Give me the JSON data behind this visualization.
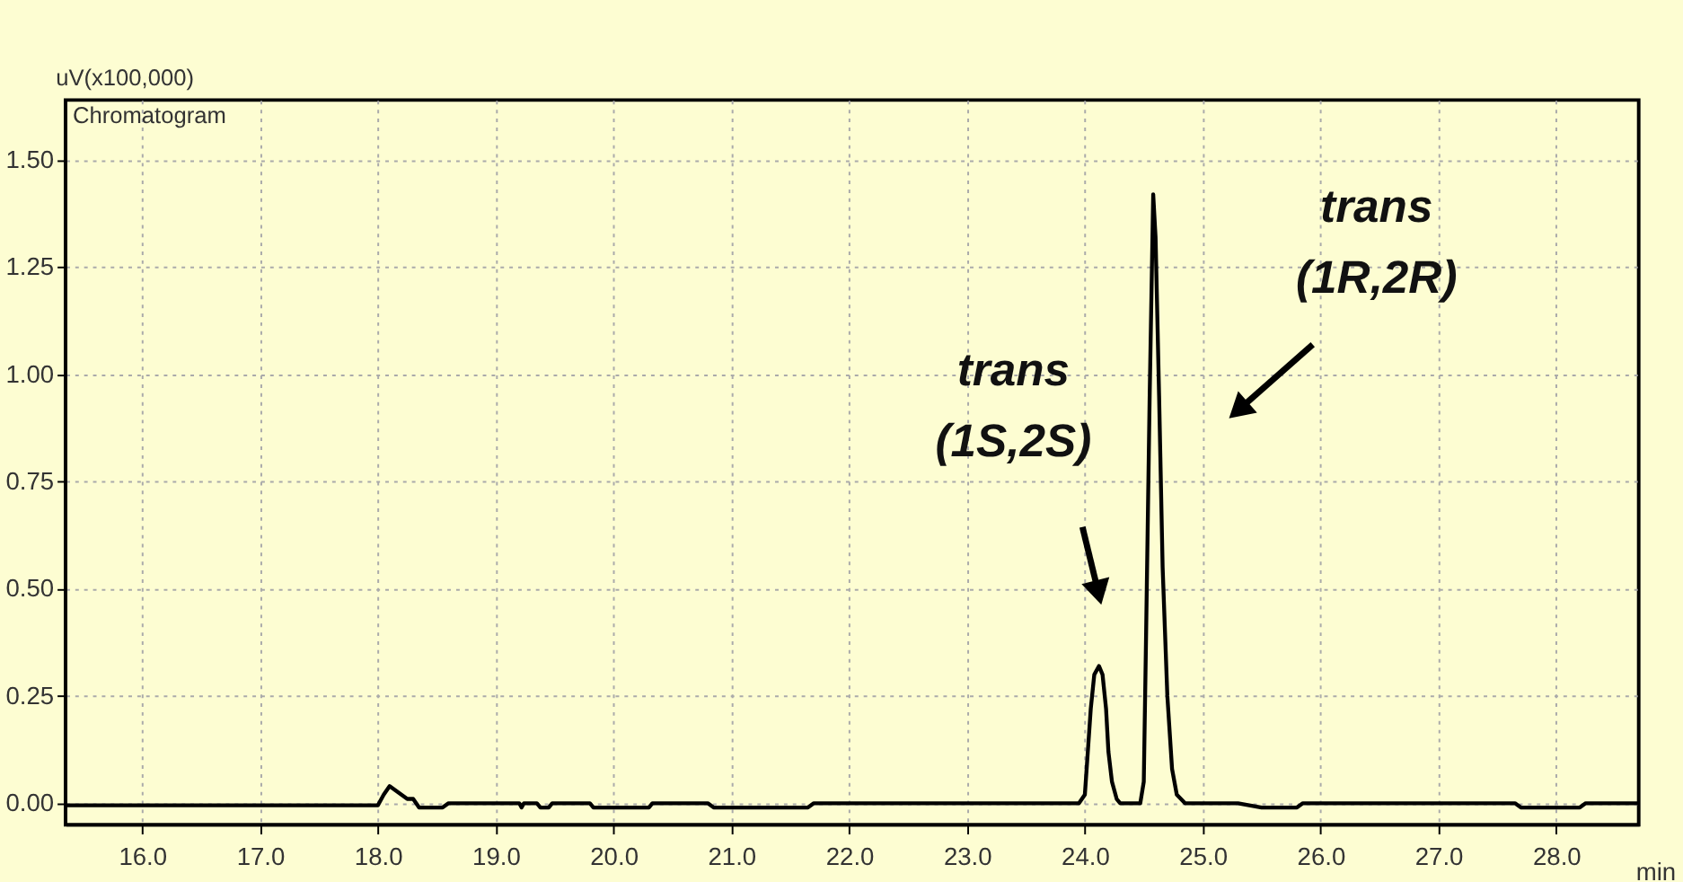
{
  "chart_data": {
    "type": "line",
    "title": "Chromatogram",
    "xlabel": "min",
    "ylabel": "uV(x100,000)",
    "xlim": [
      15.35,
      28.7
    ],
    "ylim": [
      -0.05,
      1.64
    ],
    "xticks": [
      {
        "value": 16,
        "label": "16.0"
      },
      {
        "value": 17,
        "label": "17.0"
      },
      {
        "value": 18,
        "label": "18.0"
      },
      {
        "value": 19,
        "label": "19.0"
      },
      {
        "value": 20,
        "label": "20.0"
      },
      {
        "value": 21,
        "label": "21.0"
      },
      {
        "value": 22,
        "label": "22.0"
      },
      {
        "value": 23,
        "label": "23.0"
      },
      {
        "value": 24,
        "label": "24.0"
      },
      {
        "value": 25,
        "label": "25.0"
      },
      {
        "value": 26,
        "label": "26.0"
      },
      {
        "value": 27,
        "label": "27.0"
      },
      {
        "value": 28,
        "label": "28.0"
      }
    ],
    "yticks": [
      {
        "value": 0,
        "label": "0.00"
      },
      {
        "value": 0.25,
        "label": "0.25"
      },
      {
        "value": 0.5,
        "label": "0.50"
      },
      {
        "value": 0.75,
        "label": "0.75"
      },
      {
        "value": 1.0,
        "label": "1.00"
      },
      {
        "value": 1.25,
        "label": "1.25"
      },
      {
        "value": 1.5,
        "label": "1.50"
      }
    ],
    "grid": true,
    "marker": "none",
    "line_style": "solid",
    "series": [
      {
        "color": "#000000",
        "x": [
          15.35,
          18.0,
          18.05,
          18.1,
          18.15,
          18.25,
          18.3,
          18.35,
          18.55,
          18.6,
          19.2,
          19.22,
          19.24,
          19.35,
          19.38,
          19.45,
          19.48,
          19.8,
          19.83,
          20.3,
          20.33,
          20.8,
          20.85,
          21.65,
          21.7,
          23.95,
          24.0,
          24.02,
          24.05,
          24.08,
          24.12,
          24.15,
          24.18,
          24.2,
          24.23,
          24.27,
          24.3,
          24.47,
          24.5,
          24.52,
          24.55,
          24.58,
          24.6,
          24.63,
          24.66,
          24.7,
          24.74,
          24.78,
          24.85,
          25.3,
          25.5,
          25.8,
          25.85,
          27.65,
          27.7,
          28.2,
          28.25,
          28.7
        ],
        "values": [
          -0.005,
          -0.005,
          0.02,
          0.04,
          0.03,
          0.01,
          0.01,
          -0.01,
          -0.01,
          0.0,
          0.0,
          -0.01,
          0.0,
          0.0,
          -0.01,
          -0.01,
          0.0,
          0.0,
          -0.01,
          -0.01,
          0.0,
          0.0,
          -0.01,
          -0.01,
          0.0,
          0.0,
          0.02,
          0.1,
          0.22,
          0.3,
          0.32,
          0.3,
          0.22,
          0.12,
          0.05,
          0.01,
          0.0,
          0.0,
          0.05,
          0.4,
          0.95,
          1.42,
          1.32,
          0.95,
          0.55,
          0.25,
          0.08,
          0.02,
          0.0,
          0.0,
          -0.01,
          -0.01,
          0.0,
          0.0,
          -0.01,
          -0.01,
          0.0,
          0.0
        ]
      }
    ],
    "annotations": [
      "trans\n(1S,2S)",
      "trans\n(1R,2R)"
    ]
  }
}
